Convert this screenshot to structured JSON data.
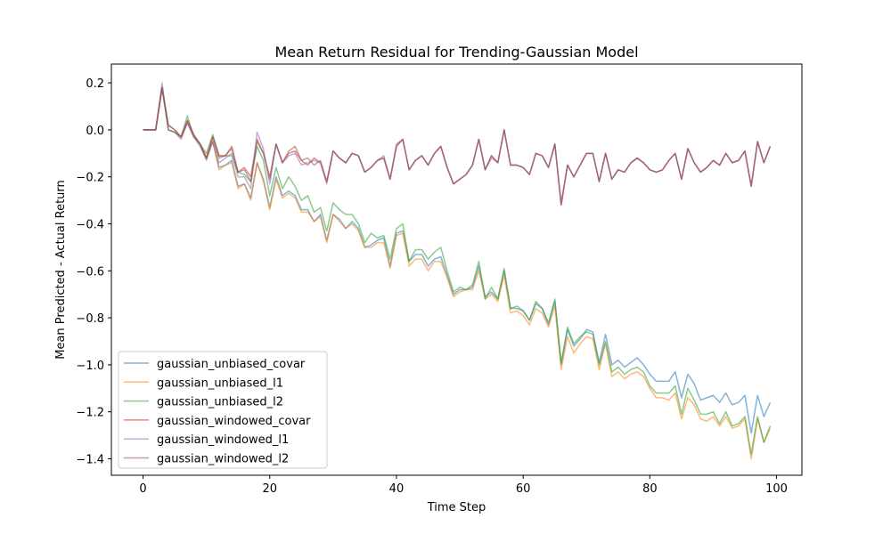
{
  "chart_data": {
    "type": "line",
    "title": "Mean Return Residual for Trending-Gaussian Model",
    "xlabel": "Time Step",
    "ylabel": "Mean Predicted - Actual Return",
    "xlim": [
      -5,
      104
    ],
    "ylim": [
      -1.47,
      0.28
    ],
    "xticks": [
      0,
      20,
      40,
      60,
      80,
      100
    ],
    "yticks": [
      0.2,
      0.0,
      -0.2,
      -0.4,
      -0.6,
      -0.8,
      -1.0,
      -1.2,
      -1.4
    ],
    "xtick_labels": [
      "0",
      "20",
      "40",
      "60",
      "80",
      "100"
    ],
    "ytick_labels": [
      "0.2",
      "0.0",
      "−0.2",
      "−0.4",
      "−0.6",
      "−0.8",
      "−1.0",
      "−1.2",
      "−1.4"
    ],
    "grid": false,
    "legend_position": "lower-left",
    "series": [
      {
        "name": "gaussian_unbiased_covar",
        "color": "#1f77b4",
        "values": [
          0.0,
          0.0,
          0.0,
          0.18,
          0.0,
          -0.01,
          -0.03,
          0.03,
          -0.03,
          -0.06,
          -0.12,
          -0.05,
          -0.16,
          -0.15,
          -0.13,
          -0.24,
          -0.23,
          -0.29,
          -0.14,
          -0.21,
          -0.33,
          -0.2,
          -0.28,
          -0.26,
          -0.28,
          -0.34,
          -0.34,
          -0.39,
          -0.36,
          -0.47,
          -0.36,
          -0.38,
          -0.42,
          -0.39,
          -0.42,
          -0.5,
          -0.49,
          -0.47,
          -0.46,
          -0.58,
          -0.44,
          -0.43,
          -0.56,
          -0.53,
          -0.53,
          -0.58,
          -0.55,
          -0.54,
          -0.62,
          -0.7,
          -0.68,
          -0.68,
          -0.67,
          -0.58,
          -0.71,
          -0.69,
          -0.72,
          -0.6,
          -0.76,
          -0.76,
          -0.77,
          -0.81,
          -0.74,
          -0.76,
          -0.83,
          -0.73,
          -1.0,
          -0.85,
          -0.92,
          -0.89,
          -0.85,
          -0.86,
          -0.99,
          -0.87,
          -1.0,
          -0.98,
          -1.01,
          -0.99,
          -0.97,
          -1.0,
          -1.04,
          -1.07,
          -1.07,
          -1.07,
          -1.03,
          -1.14,
          -1.04,
          -1.08,
          -1.15,
          -1.14,
          -1.13,
          -1.16,
          -1.12,
          -1.17,
          -1.16,
          -1.13,
          -1.29,
          -1.13,
          -1.22,
          -1.16
        ]
      },
      {
        "name": "gaussian_unbiased_l1",
        "color": "#ff7f0e",
        "values": [
          0.0,
          0.0,
          0.0,
          0.18,
          0.0,
          -0.01,
          -0.03,
          0.03,
          -0.03,
          -0.06,
          -0.12,
          -0.05,
          -0.17,
          -0.15,
          -0.14,
          -0.25,
          -0.23,
          -0.3,
          -0.14,
          -0.22,
          -0.34,
          -0.21,
          -0.29,
          -0.27,
          -0.29,
          -0.35,
          -0.35,
          -0.39,
          -0.37,
          -0.48,
          -0.36,
          -0.39,
          -0.42,
          -0.4,
          -0.43,
          -0.5,
          -0.5,
          -0.48,
          -0.48,
          -0.59,
          -0.45,
          -0.44,
          -0.58,
          -0.55,
          -0.55,
          -0.6,
          -0.56,
          -0.56,
          -0.63,
          -0.71,
          -0.69,
          -0.68,
          -0.68,
          -0.6,
          -0.72,
          -0.7,
          -0.73,
          -0.62,
          -0.78,
          -0.77,
          -0.79,
          -0.83,
          -0.76,
          -0.78,
          -0.84,
          -0.75,
          -1.02,
          -0.88,
          -0.95,
          -0.91,
          -0.88,
          -0.89,
          -1.02,
          -0.91,
          -1.05,
          -1.03,
          -1.06,
          -1.04,
          -1.03,
          -1.05,
          -1.1,
          -1.14,
          -1.14,
          -1.15,
          -1.12,
          -1.23,
          -1.14,
          -1.17,
          -1.23,
          -1.24,
          -1.22,
          -1.26,
          -1.22,
          -1.27,
          -1.26,
          -1.23,
          -1.4,
          -1.23,
          -1.33,
          -1.27
        ]
      },
      {
        "name": "gaussian_unbiased_l2",
        "color": "#2ca02c",
        "values": [
          0.0,
          0.0,
          0.0,
          0.18,
          0.0,
          -0.01,
          -0.03,
          0.06,
          -0.03,
          -0.06,
          -0.1,
          -0.02,
          -0.11,
          -0.11,
          -0.11,
          -0.18,
          -0.19,
          -0.22,
          -0.07,
          -0.13,
          -0.28,
          -0.16,
          -0.25,
          -0.2,
          -0.24,
          -0.3,
          -0.28,
          -0.35,
          -0.33,
          -0.43,
          -0.31,
          -0.34,
          -0.36,
          -0.36,
          -0.4,
          -0.48,
          -0.44,
          -0.46,
          -0.45,
          -0.55,
          -0.42,
          -0.4,
          -0.56,
          -0.51,
          -0.51,
          -0.55,
          -0.52,
          -0.5,
          -0.6,
          -0.69,
          -0.67,
          -0.68,
          -0.66,
          -0.56,
          -0.72,
          -0.67,
          -0.72,
          -0.59,
          -0.76,
          -0.75,
          -0.77,
          -0.81,
          -0.73,
          -0.76,
          -0.82,
          -0.72,
          -0.99,
          -0.84,
          -0.91,
          -0.88,
          -0.86,
          -0.87,
          -1.0,
          -0.9,
          -1.03,
          -1.01,
          -1.04,
          -1.02,
          -1.01,
          -1.03,
          -1.09,
          -1.12,
          -1.12,
          -1.12,
          -1.09,
          -1.21,
          -1.1,
          -1.15,
          -1.21,
          -1.21,
          -1.2,
          -1.25,
          -1.2,
          -1.26,
          -1.25,
          -1.22,
          -1.38,
          -1.22,
          -1.33,
          -1.26
        ]
      },
      {
        "name": "gaussian_windowed_covar",
        "color": "#d62728",
        "values": [
          0.0,
          0.0,
          0.0,
          0.18,
          0.02,
          0.0,
          -0.03,
          0.04,
          -0.02,
          -0.06,
          -0.12,
          -0.03,
          -0.11,
          -0.11,
          -0.08,
          -0.18,
          -0.16,
          -0.2,
          -0.04,
          -0.1,
          -0.21,
          -0.06,
          -0.14,
          -0.1,
          -0.09,
          -0.13,
          -0.15,
          -0.12,
          -0.14,
          -0.22,
          -0.09,
          -0.12,
          -0.14,
          -0.1,
          -0.11,
          -0.18,
          -0.16,
          -0.13,
          -0.12,
          -0.21,
          -0.07,
          -0.04,
          -0.17,
          -0.13,
          -0.11,
          -0.15,
          -0.1,
          -0.07,
          -0.16,
          -0.23,
          -0.21,
          -0.19,
          -0.15,
          -0.04,
          -0.17,
          -0.11,
          -0.14,
          0.0,
          -0.15,
          -0.15,
          -0.16,
          -0.19,
          -0.1,
          -0.11,
          -0.16,
          -0.06,
          -0.32,
          -0.15,
          -0.2,
          -0.15,
          -0.1,
          -0.1,
          -0.22,
          -0.1,
          -0.21,
          -0.17,
          -0.18,
          -0.14,
          -0.12,
          -0.14,
          -0.17,
          -0.18,
          -0.17,
          -0.13,
          -0.1,
          -0.21,
          -0.08,
          -0.14,
          -0.18,
          -0.16,
          -0.13,
          -0.15,
          -0.1,
          -0.14,
          -0.13,
          -0.09,
          -0.24,
          -0.05,
          -0.14,
          -0.07
        ]
      },
      {
        "name": "gaussian_windowed_l1",
        "color": "#9467bd",
        "values": [
          0.0,
          0.0,
          0.0,
          0.2,
          0.0,
          -0.01,
          -0.04,
          0.03,
          -0.03,
          -0.07,
          -0.13,
          -0.05,
          -0.14,
          -0.12,
          -0.1,
          -0.2,
          -0.2,
          -0.25,
          -0.01,
          -0.08,
          -0.23,
          -0.06,
          -0.14,
          -0.11,
          -0.1,
          -0.15,
          -0.14,
          -0.13,
          -0.14,
          -0.23,
          -0.09,
          -0.12,
          -0.14,
          -0.1,
          -0.11,
          -0.18,
          -0.16,
          -0.13,
          -0.11,
          -0.21,
          -0.06,
          -0.04,
          -0.17,
          -0.13,
          -0.11,
          -0.15,
          -0.1,
          -0.07,
          -0.16,
          -0.23,
          -0.21,
          -0.19,
          -0.15,
          -0.04,
          -0.17,
          -0.12,
          -0.14,
          0.0,
          -0.15,
          -0.15,
          -0.16,
          -0.19,
          -0.1,
          -0.11,
          -0.16,
          -0.06,
          -0.31,
          -0.15,
          -0.2,
          -0.15,
          -0.1,
          -0.1,
          -0.22,
          -0.1,
          -0.21,
          -0.17,
          -0.18,
          -0.14,
          -0.12,
          -0.14,
          -0.17,
          -0.18,
          -0.17,
          -0.13,
          -0.1,
          -0.21,
          -0.08,
          -0.14,
          -0.18,
          -0.16,
          -0.13,
          -0.15,
          -0.1,
          -0.14,
          -0.13,
          -0.09,
          -0.24,
          -0.05,
          -0.14,
          -0.07
        ]
      },
      {
        "name": "gaussian_windowed_l2",
        "color": "#8c564b",
        "values": [
          0.0,
          0.0,
          0.0,
          0.18,
          0.02,
          0.0,
          -0.03,
          0.04,
          -0.02,
          -0.06,
          -0.12,
          -0.03,
          -0.12,
          -0.11,
          -0.07,
          -0.18,
          -0.17,
          -0.22,
          -0.05,
          -0.1,
          -0.2,
          -0.06,
          -0.14,
          -0.09,
          -0.07,
          -0.13,
          -0.12,
          -0.15,
          -0.13,
          -0.22,
          -0.09,
          -0.12,
          -0.14,
          -0.1,
          -0.11,
          -0.18,
          -0.16,
          -0.13,
          -0.12,
          -0.21,
          -0.07,
          -0.04,
          -0.17,
          -0.13,
          -0.11,
          -0.15,
          -0.1,
          -0.07,
          -0.16,
          -0.23,
          -0.21,
          -0.19,
          -0.15,
          -0.04,
          -0.17,
          -0.11,
          -0.14,
          0.0,
          -0.15,
          -0.15,
          -0.16,
          -0.19,
          -0.1,
          -0.11,
          -0.16,
          -0.06,
          -0.32,
          -0.15,
          -0.2,
          -0.15,
          -0.1,
          -0.1,
          -0.22,
          -0.1,
          -0.21,
          -0.17,
          -0.18,
          -0.14,
          -0.12,
          -0.14,
          -0.17,
          -0.18,
          -0.17,
          -0.13,
          -0.1,
          -0.21,
          -0.08,
          -0.14,
          -0.18,
          -0.16,
          -0.13,
          -0.15,
          -0.1,
          -0.14,
          -0.13,
          -0.09,
          -0.24,
          -0.05,
          -0.14,
          -0.07
        ]
      }
    ]
  }
}
